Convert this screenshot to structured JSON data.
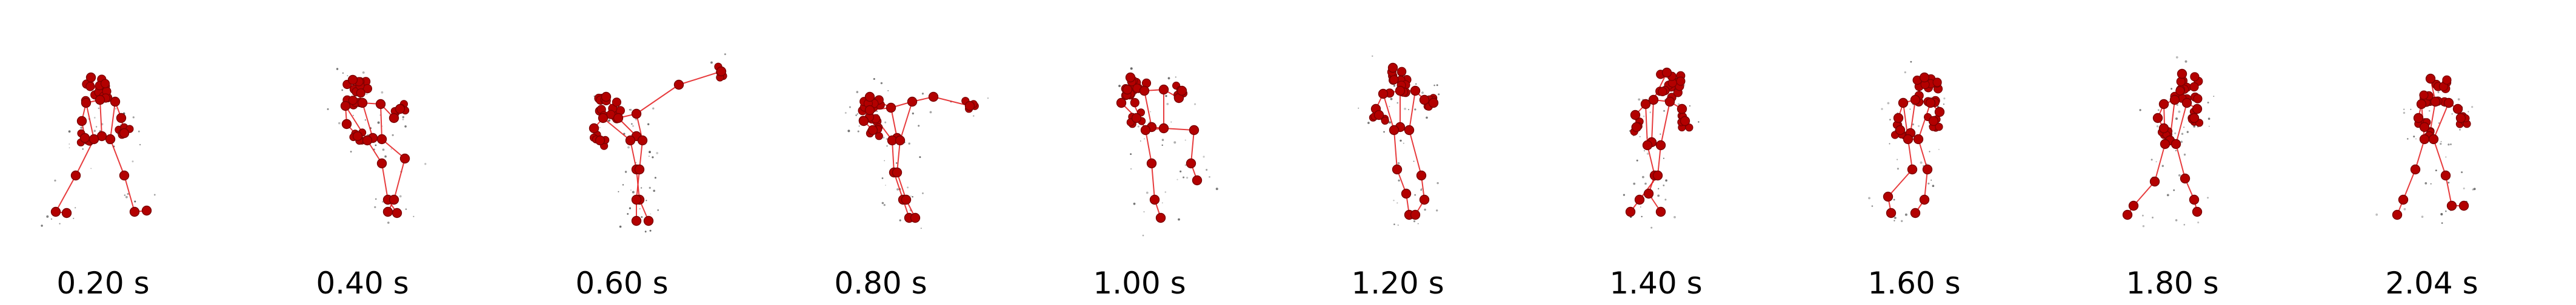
{
  "figure": {
    "frames": [
      {
        "time_label": "0.20 s"
      },
      {
        "time_label": "0.40 s"
      },
      {
        "time_label": "0.60 s"
      },
      {
        "time_label": "0.80 s"
      },
      {
        "time_label": "1.00 s"
      },
      {
        "time_label": "1.20 s"
      },
      {
        "time_label": "1.40 s"
      },
      {
        "time_label": "1.60 s"
      },
      {
        "time_label": "1.80 s"
      },
      {
        "time_label": "2.04 s"
      }
    ],
    "colors": {
      "skeleton_line": "#e31a1c",
      "joint_fill": "#b30000",
      "joint_stroke": "#7a0000",
      "ghost_points": "#222222",
      "label_text": "#000000"
    }
  }
}
